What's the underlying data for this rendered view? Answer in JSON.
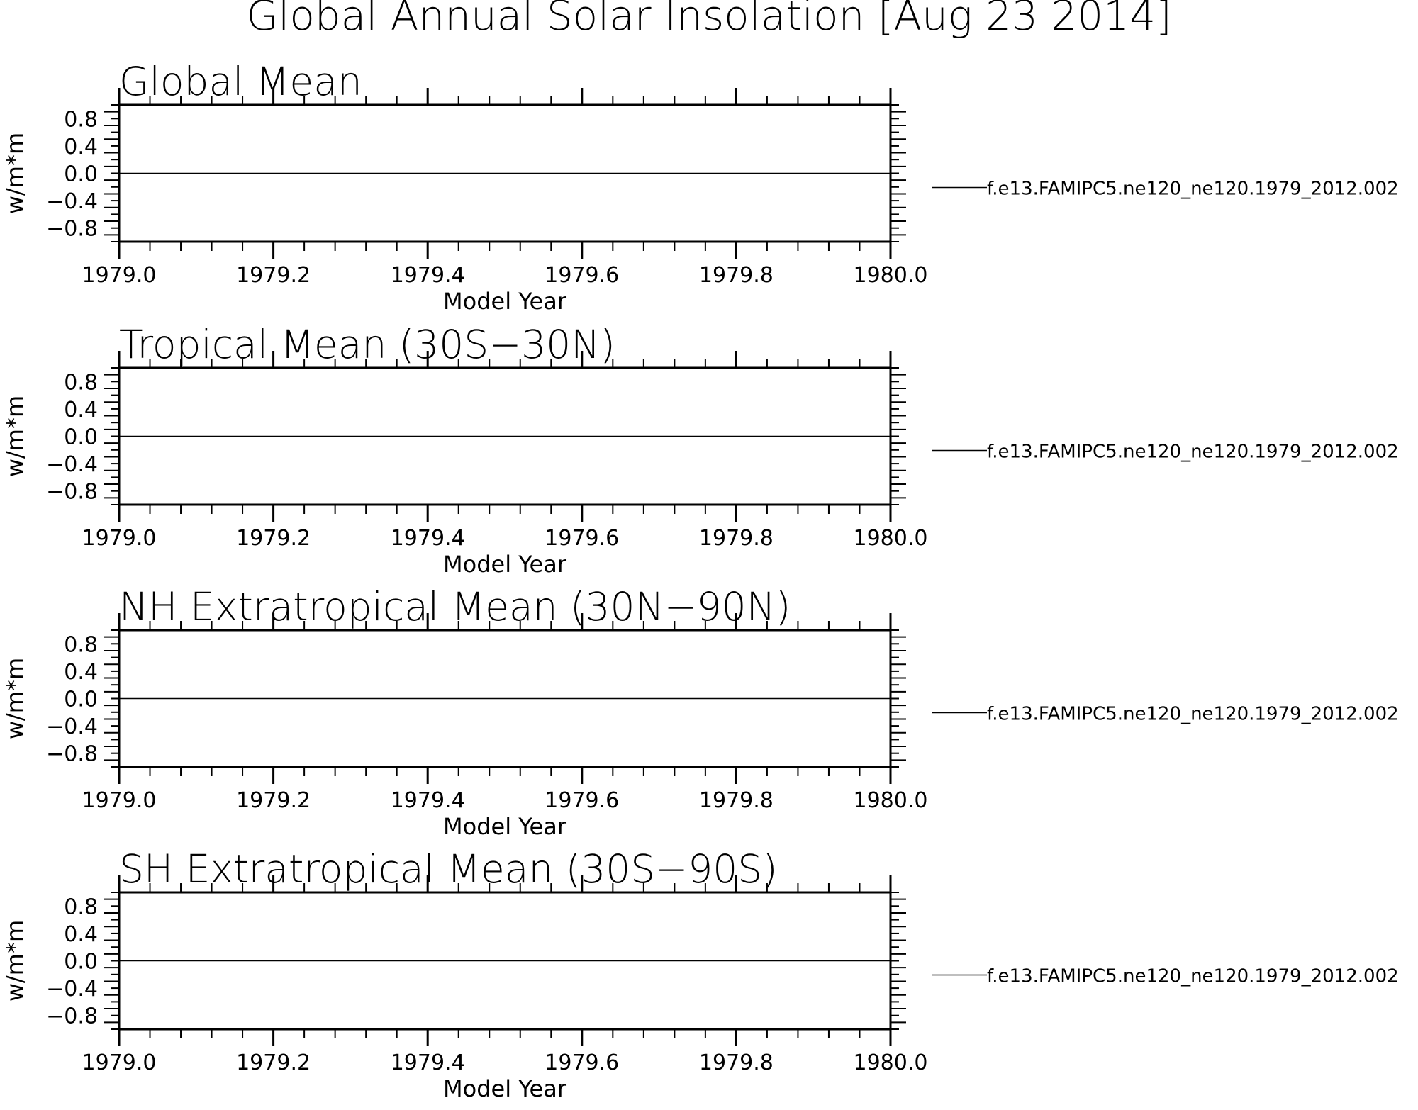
{
  "title": "Global Annual Solar Insolation [Aug 23 2014]",
  "chart_data": [
    {
      "type": "line",
      "title": "Global Mean",
      "xlabel": "Model Year",
      "ylabel": "w/m*m",
      "xlim": [
        1979.0,
        1980.0
      ],
      "ylim": [
        -1.0,
        1.0
      ],
      "x_ticks": [
        "1979.0",
        "1979.2",
        "1979.4",
        "1979.6",
        "1979.8",
        "1980.0"
      ],
      "y_ticks": [
        "0.8",
        "0.4",
        "0.0",
        "−0.4",
        "−0.8"
      ],
      "series": [
        {
          "name": "f.e13.FAMIPC5.ne120_ne120.1979_2012.002",
          "x": [
            1979.0,
            1980.0
          ],
          "y": [
            0,
            0
          ]
        }
      ],
      "legend": "right"
    },
    {
      "type": "line",
      "title": "Tropical Mean (30S−30N)",
      "xlabel": "Model Year",
      "ylabel": "w/m*m",
      "xlim": [
        1979.0,
        1980.0
      ],
      "ylim": [
        -1.0,
        1.0
      ],
      "x_ticks": [
        "1979.0",
        "1979.2",
        "1979.4",
        "1979.6",
        "1979.8",
        "1980.0"
      ],
      "y_ticks": [
        "0.8",
        "0.4",
        "0.0",
        "−0.4",
        "−0.8"
      ],
      "series": [
        {
          "name": "f.e13.FAMIPC5.ne120_ne120.1979_2012.002",
          "x": [
            1979.0,
            1980.0
          ],
          "y": [
            0,
            0
          ]
        }
      ],
      "legend": "right"
    },
    {
      "type": "line",
      "title": "NH Extratropical Mean (30N−90N)",
      "xlabel": "Model Year",
      "ylabel": "w/m*m",
      "xlim": [
        1979.0,
        1980.0
      ],
      "ylim": [
        -1.0,
        1.0
      ],
      "x_ticks": [
        "1979.0",
        "1979.2",
        "1979.4",
        "1979.6",
        "1979.8",
        "1980.0"
      ],
      "y_ticks": [
        "0.8",
        "0.4",
        "0.0",
        "−0.4",
        "−0.8"
      ],
      "series": [
        {
          "name": "f.e13.FAMIPC5.ne120_ne120.1979_2012.002",
          "x": [
            1979.0,
            1980.0
          ],
          "y": [
            0,
            0
          ]
        }
      ],
      "legend": "right"
    },
    {
      "type": "line",
      "title": "SH Extratropical Mean (30S−90S)",
      "xlabel": "Model Year",
      "ylabel": "w/m*m",
      "xlim": [
        1979.0,
        1980.0
      ],
      "ylim": [
        -1.0,
        1.0
      ],
      "x_ticks": [
        "1979.0",
        "1979.2",
        "1979.4",
        "1979.6",
        "1979.8",
        "1980.0"
      ],
      "y_ticks": [
        "0.8",
        "0.4",
        "0.0",
        "−0.4",
        "−0.8"
      ],
      "series": [
        {
          "name": "f.e13.FAMIPC5.ne120_ne120.1979_2012.002",
          "x": [
            1979.0,
            1980.0
          ],
          "y": [
            0,
            0
          ]
        }
      ],
      "legend": "right"
    }
  ]
}
